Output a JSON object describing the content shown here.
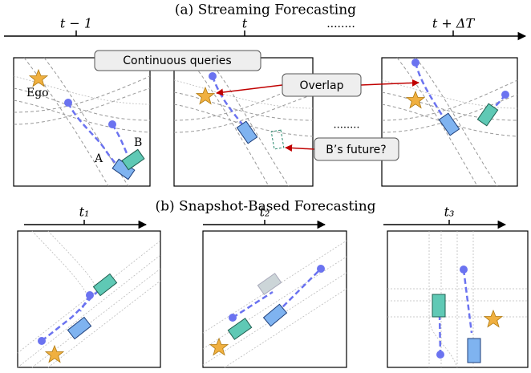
{
  "streaming": {
    "title": "(a) Streaming Forecasting",
    "timeline": {
      "labels": [
        "t − 1",
        "t",
        "........",
        "t + ΔT"
      ]
    },
    "callouts": {
      "queries": "Continuous queries",
      "overlap": "Overlap",
      "future": "B’s future?",
      "ellipsis": "........"
    },
    "panel_labels": {
      "ego": "Ego",
      "a": "A",
      "b": "B"
    }
  },
  "snapshot": {
    "title": "(b) Snapshot-Based Forecasting",
    "timeline": {
      "labels": [
        "t₁",
        "t₂",
        "t₃"
      ]
    }
  }
}
